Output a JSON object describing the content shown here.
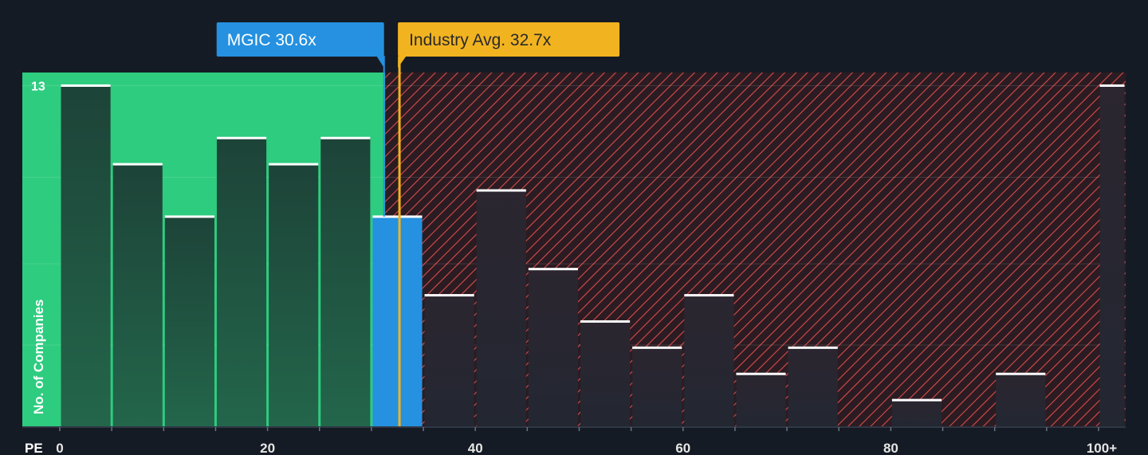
{
  "chart_data": {
    "type": "bar",
    "xlabel": "PE",
    "ylabel": "No. of Companies",
    "bin_width": 5,
    "x_range": [
      0,
      103
    ],
    "ylim": [
      0,
      13.5
    ],
    "x_ticks": [
      {
        "value": 0,
        "label": "0"
      },
      {
        "value": 20,
        "label": "20"
      },
      {
        "value": 40,
        "label": "40"
      },
      {
        "value": 60,
        "label": "60"
      },
      {
        "value": 80,
        "label": "80"
      },
      {
        "value": 100,
        "label": "100+"
      }
    ],
    "y_ticks": [
      {
        "value": 13,
        "label": "13"
      }
    ],
    "bars": [
      {
        "x": 0,
        "value": 13
      },
      {
        "x": 5,
        "value": 10
      },
      {
        "x": 10,
        "value": 8
      },
      {
        "x": 15,
        "value": 11
      },
      {
        "x": 20,
        "value": 10
      },
      {
        "x": 25,
        "value": 11
      },
      {
        "x": 30,
        "value": 8
      },
      {
        "x": 35,
        "value": 5
      },
      {
        "x": 40,
        "value": 9
      },
      {
        "x": 45,
        "value": 6
      },
      {
        "x": 50,
        "value": 4
      },
      {
        "x": 55,
        "value": 3
      },
      {
        "x": 60,
        "value": 5
      },
      {
        "x": 65,
        "value": 2
      },
      {
        "x": 70,
        "value": 3
      },
      {
        "x": 75,
        "value": 0
      },
      {
        "x": 80,
        "value": 1
      },
      {
        "x": 85,
        "value": 0
      },
      {
        "x": 90,
        "value": 2
      },
      {
        "x": 95,
        "value": 0
      },
      {
        "x": 100,
        "value": 13
      }
    ],
    "company": {
      "name": "MGIC",
      "value": 30.6,
      "label": "MGIC 30.6x"
    },
    "industry": {
      "value": 32.7,
      "label": "Industry Avg. 32.7x"
    },
    "colors": {
      "background": "#151b24",
      "fair_zone": "#2ecc7f",
      "fair_bar": "#1f4a3c",
      "over_zone_stripe": "#d94b4b",
      "over_bar": "#232733",
      "company": "#2591e0",
      "industry": "#f1b320",
      "bar_top": "#ffffff"
    }
  }
}
